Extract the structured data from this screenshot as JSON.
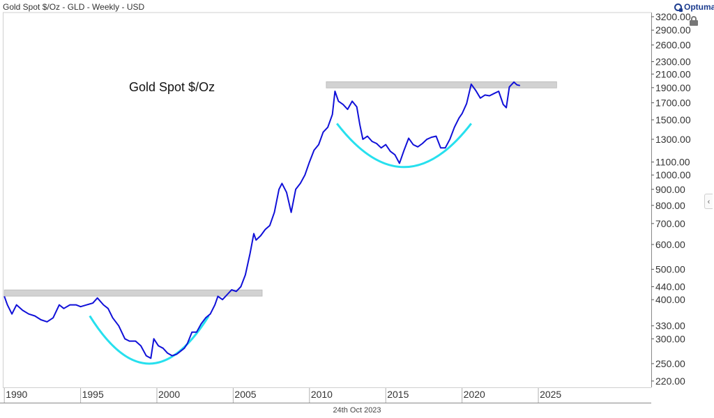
{
  "header": {
    "title": "Gold Spot $/Oz - GLD - Weekly - USD",
    "brand": "Optuma"
  },
  "footer": {
    "date": "24th Oct 2023"
  },
  "colors": {
    "series": "#1010d8",
    "arc": "#27e0ee",
    "band": "#d2d2d2",
    "axis": "#555555"
  },
  "chart_data": {
    "type": "line",
    "title": "Gold Spot $/Oz",
    "xlabel": "",
    "ylabel": "",
    "y_scale": "log",
    "ylim": [
      210,
      3300
    ],
    "xlim": [
      1989.9,
      2032.4
    ],
    "grid": false,
    "legend": "none",
    "x_ticks": [
      "1990",
      "1995",
      "2000",
      "2005",
      "2010",
      "2015",
      "2020",
      "2025"
    ],
    "y_ticks": [
      "3200.00",
      "2900.00",
      "2600.00",
      "2300.00",
      "2100.00",
      "1900.00",
      "1700.00",
      "1500.00",
      "1300.00",
      "1100.00",
      "1000.00",
      "900.00",
      "800.00",
      "700.00",
      "600.00",
      "500.00",
      "440.00",
      "400.00",
      "330.00",
      "300.00",
      "250.00",
      "220.00"
    ],
    "series": [
      {
        "x": [
          1990.0,
          1990.2,
          1990.5,
          1990.8,
          1991.2,
          1991.6,
          1992.0,
          1992.4,
          1992.8,
          1993.2,
          1993.6,
          1993.9,
          1994.3,
          1994.7,
          1995.0,
          1995.4,
          1995.8,
          1996.1,
          1996.5,
          1996.8,
          1997.1,
          1997.5,
          1997.9,
          1998.2,
          1998.6,
          1998.95,
          1999.3,
          1999.6,
          1999.8,
          2000.1,
          2000.4,
          2000.7,
          2001.0,
          2001.3,
          2001.6,
          2001.8,
          2002.0,
          2002.3,
          2002.6,
          2002.9,
          2003.2,
          2003.5,
          2003.8,
          2004.0,
          2004.3,
          2004.6,
          2004.9,
          2005.2,
          2005.5,
          2005.8,
          2006.1,
          2006.35,
          2006.5,
          2006.8,
          2007.1,
          2007.4,
          2007.7,
          2008.0,
          2008.2,
          2008.5,
          2008.8,
          2009.1,
          2009.4,
          2009.7,
          2010.0,
          2010.3,
          2010.6,
          2010.9,
          2011.2,
          2011.5,
          2011.67,
          2011.9,
          2012.2,
          2012.5,
          2012.8,
          2013.1,
          2013.3,
          2013.5,
          2013.8,
          2014.1,
          2014.4,
          2014.7,
          2015.0,
          2015.3,
          2015.6,
          2015.9,
          2016.2,
          2016.5,
          2016.8,
          2017.1,
          2017.4,
          2017.7,
          2018.0,
          2018.3,
          2018.6,
          2018.9,
          2019.2,
          2019.5,
          2019.8,
          2020.0,
          2020.3,
          2020.6,
          2020.9,
          2021.2,
          2021.5,
          2021.8,
          2022.1,
          2022.4,
          2022.7,
          2022.9,
          2023.1,
          2023.4,
          2023.6,
          2023.8
        ],
        "y": [
          410,
          385,
          360,
          385,
          370,
          360,
          355,
          345,
          340,
          350,
          385,
          375,
          385,
          385,
          380,
          385,
          390,
          405,
          385,
          375,
          350,
          330,
          300,
          295,
          295,
          285,
          265,
          260,
          300,
          285,
          280,
          270,
          265,
          268,
          275,
          280,
          290,
          315,
          315,
          335,
          350,
          360,
          385,
          410,
          400,
          415,
          430,
          425,
          440,
          480,
          560,
          650,
          620,
          640,
          670,
          690,
          760,
          900,
          940,
          880,
          760,
          900,
          940,
          1000,
          1100,
          1200,
          1250,
          1370,
          1420,
          1560,
          1850,
          1720,
          1680,
          1620,
          1720,
          1650,
          1450,
          1300,
          1330,
          1280,
          1260,
          1220,
          1250,
          1190,
          1160,
          1090,
          1200,
          1310,
          1250,
          1230,
          1260,
          1300,
          1320,
          1330,
          1220,
          1220,
          1300,
          1420,
          1520,
          1570,
          1690,
          1950,
          1860,
          1760,
          1800,
          1790,
          1820,
          1850,
          1680,
          1640,
          1910,
          1980,
          1940,
          1930
        ]
      }
    ],
    "bands": [
      {
        "x0": 1990.0,
        "x1": 2006.9,
        "y": 420
      },
      {
        "x0": 2011.1,
        "x1": 2026.2,
        "y": 1940
      }
    ],
    "arcs": [
      {
        "x0": 1995.6,
        "x1": 2003.4,
        "y_ends": 355,
        "y_bottom": 250
      },
      {
        "x0": 2011.8,
        "x1": 2020.6,
        "y_ends": 1460,
        "y_bottom": 1060
      }
    ]
  }
}
